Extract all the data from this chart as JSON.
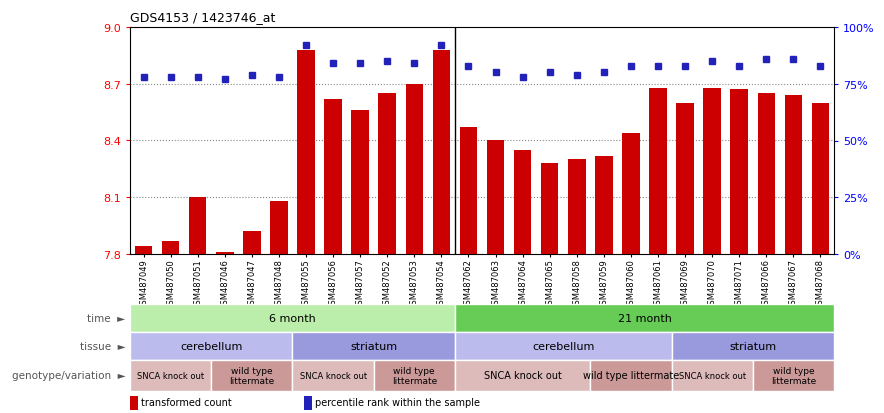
{
  "title": "GDS4153 / 1423746_at",
  "samples": [
    "GSM487049",
    "GSM487050",
    "GSM487051",
    "GSM487046",
    "GSM487047",
    "GSM487048",
    "GSM487055",
    "GSM487056",
    "GSM487057",
    "GSM487052",
    "GSM487053",
    "GSM487054",
    "GSM487062",
    "GSM487063",
    "GSM487064",
    "GSM487065",
    "GSM487058",
    "GSM487059",
    "GSM487060",
    "GSM487061",
    "GSM487069",
    "GSM487070",
    "GSM487071",
    "GSM487066",
    "GSM487067",
    "GSM487068"
  ],
  "bar_values": [
    7.84,
    7.87,
    8.1,
    7.81,
    7.92,
    8.08,
    8.88,
    8.62,
    8.56,
    8.65,
    8.7,
    8.88,
    8.47,
    8.4,
    8.35,
    8.28,
    8.3,
    8.32,
    8.44,
    8.68,
    8.6,
    8.68,
    8.67,
    8.65,
    8.64,
    8.6
  ],
  "percentile_values": [
    78,
    78,
    78,
    77,
    79,
    78,
    92,
    84,
    84,
    85,
    84,
    92,
    83,
    80,
    78,
    80,
    79,
    80,
    83,
    83,
    83,
    85,
    83,
    86,
    86,
    83
  ],
  "ymin": 7.8,
  "ymax": 9.0,
  "yticks_left": [
    7.8,
    8.1,
    8.4,
    8.7,
    9.0
  ],
  "yticks_right_pct": [
    0,
    25,
    50,
    75,
    100
  ],
  "bar_color": "#cc0000",
  "percentile_color": "#2222bb",
  "grid_dotted_at": [
    8.1,
    8.4,
    8.7
  ],
  "grid_color": "#888888",
  "time_row": [
    {
      "label": "6 month",
      "start": 0,
      "end": 12,
      "color": "#bbeeaa"
    },
    {
      "label": "21 month",
      "start": 12,
      "end": 26,
      "color": "#66cc55"
    }
  ],
  "tissue_row": [
    {
      "label": "cerebellum",
      "start": 0,
      "end": 6,
      "color": "#bbbbee"
    },
    {
      "label": "striatum",
      "start": 6,
      "end": 12,
      "color": "#9999dd"
    },
    {
      "label": "cerebellum",
      "start": 12,
      "end": 20,
      "color": "#bbbbee"
    },
    {
      "label": "striatum",
      "start": 20,
      "end": 26,
      "color": "#9999dd"
    }
  ],
  "genotype_row": [
    {
      "label": "SNCA knock out",
      "start": 0,
      "end": 3,
      "color": "#ddbbbb",
      "fontsize": 6.0
    },
    {
      "label": "wild type\nlittermate",
      "start": 3,
      "end": 6,
      "color": "#cc9999",
      "fontsize": 6.5
    },
    {
      "label": "SNCA knock out",
      "start": 6,
      "end": 9,
      "color": "#ddbbbb",
      "fontsize": 6.0
    },
    {
      "label": "wild type\nlittermate",
      "start": 9,
      "end": 12,
      "color": "#cc9999",
      "fontsize": 6.5
    },
    {
      "label": "SNCA knock out",
      "start": 12,
      "end": 17,
      "color": "#ddbbbb",
      "fontsize": 7.0
    },
    {
      "label": "wild type littermate",
      "start": 17,
      "end": 20,
      "color": "#cc9999",
      "fontsize": 7.0
    },
    {
      "label": "SNCA knock out",
      "start": 20,
      "end": 23,
      "color": "#ddbbbb",
      "fontsize": 6.0
    },
    {
      "label": "wild type\nlittermate",
      "start": 23,
      "end": 26,
      "color": "#cc9999",
      "fontsize": 6.5
    }
  ],
  "row_labels": [
    "time",
    "tissue",
    "genotype/variation"
  ],
  "legend_items": [
    {
      "label": "transformed count",
      "color": "#cc0000"
    },
    {
      "label": "percentile rank within the sample",
      "color": "#2222bb"
    }
  ],
  "bg_color": "#ffffff"
}
